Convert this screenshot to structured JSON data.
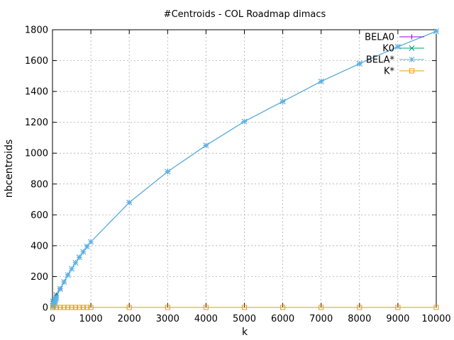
{
  "chart_data": {
    "type": "line",
    "title": "#Centroids - COL Roadmap dimacs",
    "xlabel": "k",
    "ylabel": "nbcentroids",
    "xlim": [
      0,
      10000
    ],
    "ylim": [
      0,
      1800
    ],
    "xticks": [
      0,
      1000,
      2000,
      3000,
      4000,
      5000,
      6000,
      7000,
      8000,
      9000,
      10000
    ],
    "yticks": [
      0,
      200,
      400,
      600,
      800,
      1000,
      1200,
      1400,
      1600,
      1800
    ],
    "grid": true,
    "legend_position": "top-right",
    "series": [
      {
        "name": "BELA0",
        "color": "#9400d3",
        "marker": "plus",
        "x": [
          10,
          100,
          200,
          300,
          400,
          500,
          600,
          700,
          800,
          900,
          1000,
          2000,
          3000,
          4000,
          5000,
          6000,
          7000,
          8000,
          9000,
          10000
        ],
        "y": [
          40,
          80,
          120,
          165,
          210,
          250,
          290,
          325,
          360,
          395,
          425,
          680,
          880,
          1050,
          1205,
          1335,
          1465,
          1580,
          1690,
          1790
        ]
      },
      {
        "name": "K0",
        "color": "#009e73",
        "marker": "cross",
        "x": [
          10,
          100,
          200,
          300,
          400,
          500,
          600,
          700,
          800,
          900,
          1000,
          2000,
          3000,
          4000,
          5000,
          6000,
          7000,
          8000,
          9000,
          10000
        ],
        "y": [
          40,
          80,
          120,
          165,
          210,
          250,
          290,
          325,
          360,
          395,
          425,
          680,
          880,
          1050,
          1205,
          1335,
          1465,
          1580,
          1690,
          1790
        ]
      },
      {
        "name": "BELA*",
        "color": "#56b4e9",
        "marker": "star",
        "x": [
          10,
          20,
          30,
          40,
          50,
          60,
          70,
          80,
          90,
          100,
          200,
          300,
          400,
          500,
          600,
          700,
          800,
          900,
          1000,
          2000,
          3000,
          4000,
          5000,
          6000,
          7000,
          8000,
          9000,
          10000
        ],
        "y": [
          5,
          10,
          15,
          22,
          28,
          35,
          42,
          50,
          58,
          65,
          122,
          165,
          210,
          250,
          290,
          325,
          360,
          395,
          425,
          680,
          880,
          1050,
          1205,
          1335,
          1465,
          1580,
          1690,
          1790
        ]
      },
      {
        "name": "K*",
        "color": "#e69f00",
        "marker": "square",
        "x": [
          10,
          100,
          200,
          300,
          400,
          500,
          600,
          700,
          800,
          900,
          1000,
          2000,
          3000,
          4000,
          5000,
          6000,
          7000,
          8000,
          9000,
          10000
        ],
        "y": [
          0,
          0,
          0,
          0,
          0,
          0,
          0,
          0,
          0,
          0,
          0,
          0,
          0,
          0,
          0,
          0,
          0,
          0,
          0,
          0
        ]
      }
    ]
  }
}
